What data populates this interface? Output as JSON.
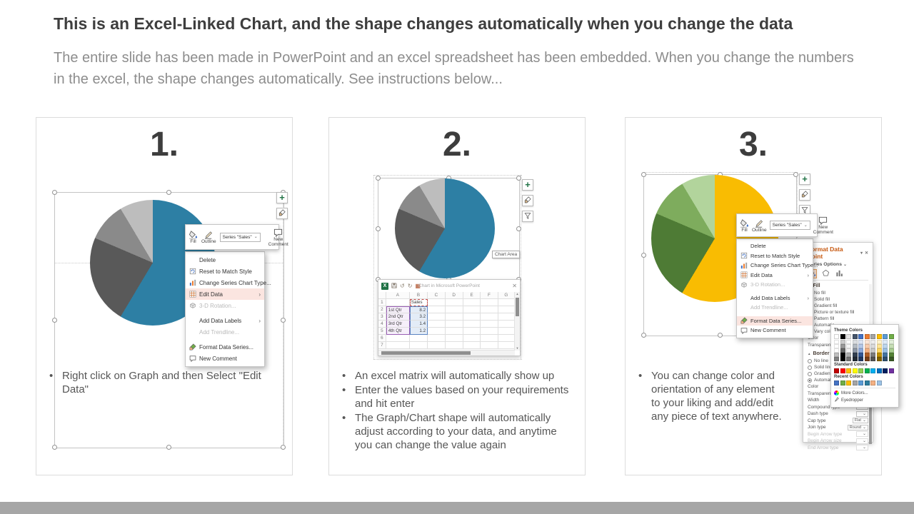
{
  "header": {
    "title": "This is an Excel-Linked Chart, and the shape changes automatically when you change the data",
    "subtitle": "The entire slide has been made in PowerPoint and an excel spreadsheet has been embedded. When you change the numbers in the excel, the shape changes automatically. See instructions below..."
  },
  "footer_bar_color": "#A6A6A6",
  "panels": [
    {
      "number": "1.",
      "bullets": [
        "Right click on Graph and then Select \"Edit Data\""
      ]
    },
    {
      "number": "2.",
      "bullets": [
        "An excel matrix will automatically show up",
        "Enter the values based on your requirements and hit enter",
        "The Graph/Chart shape will automatically adjust according to your data, and anytime you can change the value again"
      ]
    },
    {
      "number": "3.",
      "bullets": [
        "You can change color and orientation of any element to your liking and add/edit any piece of text anywhere."
      ]
    }
  ],
  "chart_data": [
    {
      "type": "pie",
      "series_name": "Sales",
      "categories": [
        "1st Qtr",
        "2nd Qtr",
        "3rd Qtr",
        "4th Qtr"
      ],
      "values": [
        8.2,
        3.2,
        1.4,
        1.2
      ],
      "colors": [
        "#2D7FA4",
        "#595959",
        "#8A8A8A",
        "#BDBDBD"
      ],
      "start_angle": 0,
      "direction": "clockwise",
      "legend": "off"
    },
    {
      "type": "pie",
      "series_name": "Sales",
      "categories": [
        "1st Qtr",
        "2nd Qtr",
        "3rd Qtr",
        "4th Qtr"
      ],
      "values": [
        8.2,
        3.2,
        1.4,
        1.2
      ],
      "colors": [
        "#F9BC02",
        "#4E7B35",
        "#7EAC5D",
        "#B2D49C"
      ],
      "start_angle": 0,
      "direction": "clockwise",
      "legend": "off"
    }
  ],
  "context_menu": {
    "mini_toolbar": {
      "fill_label": "Fill",
      "outline_label": "Outline",
      "series_selector": "Series \"Sales\"",
      "new_comment_label": "New Comment"
    },
    "items": [
      {
        "label": "Delete"
      },
      {
        "label": "Reset to Match Style",
        "icon": "reset"
      },
      {
        "label": "Change Series Chart Type...",
        "icon": "chart-type"
      },
      {
        "label": "Edit Data",
        "icon": "edit-data",
        "submenu": true
      },
      {
        "label": "3-D Rotation...",
        "icon": "rotation",
        "disabled": true
      },
      {
        "label": "Add Data Labels",
        "submenu": true,
        "gap": true
      },
      {
        "label": "Add Trendline...",
        "disabled": true
      },
      {
        "label": "Format Data Series...",
        "icon": "format-series",
        "gap": true
      },
      {
        "label": "New Comment",
        "icon": "comment"
      }
    ]
  },
  "tooltip": "Chart Area",
  "excel_window": {
    "title": "Chart in Microsoft PowerPoint",
    "columns": [
      "A",
      "B",
      "C",
      "D",
      "E",
      "F",
      "G"
    ],
    "rows": [
      [
        "",
        "Sales",
        "",
        "",
        "",
        "",
        ""
      ],
      [
        "1st Qtr",
        "8.2",
        "",
        "",
        "",
        "",
        ""
      ],
      [
        "2nd Qtr",
        "3.2",
        "",
        "",
        "",
        "",
        ""
      ],
      [
        "3rd Qtr",
        "1.4",
        "",
        "",
        "",
        "",
        ""
      ],
      [
        "4th Qtr",
        "1.2",
        "",
        "",
        "",
        "",
        ""
      ],
      [
        "",
        "",
        "",
        "",
        "",
        "",
        ""
      ],
      [
        "",
        "",
        "",
        "",
        "",
        "",
        ""
      ]
    ]
  },
  "format_pane": {
    "title": "Format Data Point",
    "series_options_label": "Series Options",
    "fill_label": "Fill",
    "fill_options": [
      "No fill",
      "Solid fill",
      "Gradient fill",
      "Picture or texture fill",
      "Pattern fill",
      "Automatic"
    ],
    "fill_selected": 1,
    "vary_label": "Vary colors by slice",
    "fill_props": [
      {
        "label": "Color",
        "control": "color"
      },
      {
        "label": "Transparency",
        "control": "slider"
      }
    ],
    "border_label": "Border",
    "border_options": [
      "No line",
      "Solid line",
      "Gradient line",
      "Automatic"
    ],
    "border_selected": 3,
    "border_props": [
      {
        "label": "Color",
        "control": "color2"
      },
      {
        "label": "Transparency",
        "control": "slider"
      },
      {
        "label": "Width",
        "control": "dd"
      },
      {
        "label": "Compound type",
        "control": "dd"
      },
      {
        "label": "Dash type",
        "control": "dd"
      },
      {
        "label": "Cap type",
        "value": "Flat"
      },
      {
        "label": "Join type",
        "value": "Round"
      },
      {
        "label": "Begin Arrow type",
        "control": "dd",
        "disabled": true
      },
      {
        "label": "Begin Arrow size",
        "control": "dd",
        "disabled": true
      },
      {
        "label": "End Arrow type",
        "control": "dd",
        "disabled": true
      }
    ],
    "picker": {
      "theme_label": "Theme Colors",
      "standard_label": "Standard Colors",
      "recent_label": "Recent Colors",
      "more_label": "More Colors...",
      "eyedropper_label": "Eyedropper",
      "theme_colors": [
        "#FFFFFF",
        "#000000",
        "#E7E6E6",
        "#44546A",
        "#4472C4",
        "#ED7D31",
        "#A5A5A5",
        "#FFC000",
        "#5B9BD5",
        "#70AD47"
      ],
      "standard_colors": [
        "#C00000",
        "#FF0000",
        "#FFC000",
        "#FFFF00",
        "#92D050",
        "#00B050",
        "#00B0F0",
        "#0070C0",
        "#002060",
        "#7030A0"
      ],
      "recent_colors": [
        "#4472C4",
        "#70AD47",
        "#FFC000",
        "#A5A5A5",
        "#5B9BD5",
        "#2E7D9E",
        "#F4B183",
        "#9DC3E6"
      ]
    }
  }
}
